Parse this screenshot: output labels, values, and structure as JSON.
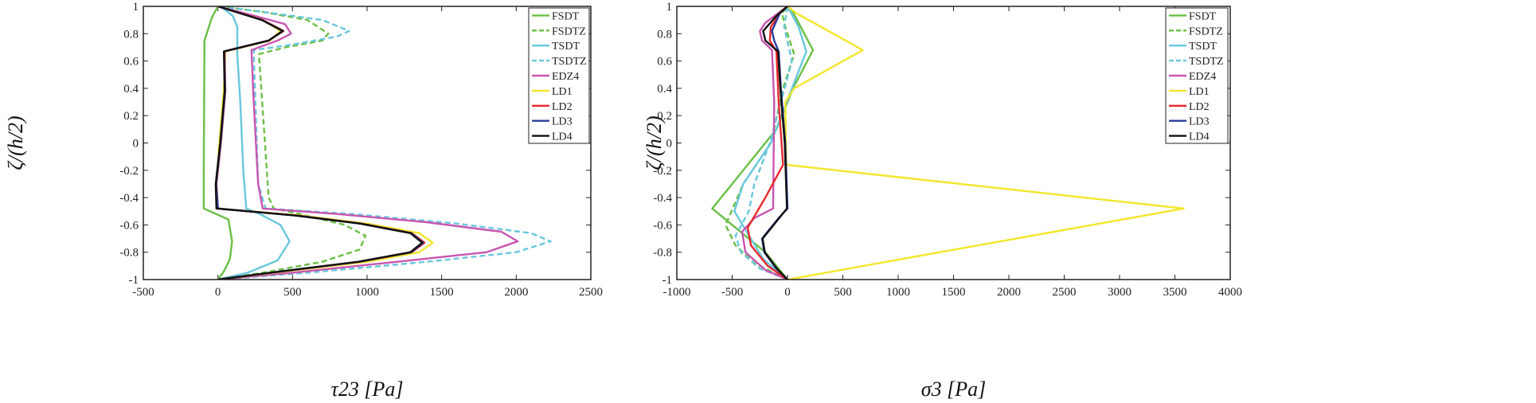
{
  "chart_data": [
    {
      "type": "line",
      "title": "",
      "xlabel": "τ23 [Pa]",
      "ylabel": "ζ/(h/2)",
      "xlim": [
        -500,
        2500
      ],
      "ylim": [
        -1,
        1
      ],
      "xticks": [
        "-500",
        "0",
        "500",
        "1000",
        "1500",
        "2000",
        "2500"
      ],
      "yticks": [
        "-1",
        "-0.8",
        "-0.6",
        "-0.4",
        "-0.2",
        "0",
        "0.2",
        "0.4",
        "0.6",
        "0.8",
        "1"
      ],
      "legend_position": "top-right",
      "series": [
        {
          "name": "FSDT",
          "color": "#6abf45",
          "dash": "solid",
          "points": [
            [
              0,
              -1
            ],
            [
              40,
              -0.94
            ],
            [
              80,
              -0.85
            ],
            [
              95,
              -0.72
            ],
            [
              70,
              -0.56
            ],
            [
              -95,
              -0.48
            ],
            [
              -95,
              -0.2
            ],
            [
              -90,
              0.75
            ],
            [
              -40,
              0.92
            ],
            [
              0,
              1
            ]
          ]
        },
        {
          "name": "FSDTZ",
          "color": "#6abf45",
          "dash": "dash",
          "points": [
            [
              0,
              -1
            ],
            [
              300,
              -0.95
            ],
            [
              700,
              -0.87
            ],
            [
              950,
              -0.78
            ],
            [
              990,
              -0.68
            ],
            [
              850,
              -0.6
            ],
            [
              550,
              -0.52
            ],
            [
              375,
              -0.48
            ],
            [
              340,
              -0.4
            ],
            [
              275,
              0.65
            ],
            [
              450,
              0.7
            ],
            [
              700,
              0.75
            ],
            [
              740,
              0.8
            ],
            [
              600,
              0.9
            ],
            [
              300,
              0.96
            ],
            [
              0,
              1
            ]
          ]
        },
        {
          "name": "TSDT",
          "color": "#68c7dc",
          "dash": "solid",
          "points": [
            [
              0,
              -1
            ],
            [
              200,
              -0.95
            ],
            [
              400,
              -0.86
            ],
            [
              480,
              -0.72
            ],
            [
              420,
              -0.6
            ],
            [
              280,
              -0.52
            ],
            [
              190,
              -0.48
            ],
            [
              170,
              -0.2
            ],
            [
              150,
              0.3
            ],
            [
              130,
              0.65
            ],
            [
              130,
              0.85
            ],
            [
              100,
              0.93
            ],
            [
              30,
              0.99
            ]
          ]
        },
        {
          "name": "TSDTZ",
          "color": "#68c7dc",
          "dash": "dash",
          "points": [
            [
              0,
              -1
            ],
            [
              600,
              -0.95
            ],
            [
              1400,
              -0.87
            ],
            [
              2000,
              -0.8
            ],
            [
              2230,
              -0.72
            ],
            [
              2100,
              -0.66
            ],
            [
              1600,
              -0.59
            ],
            [
              900,
              -0.52
            ],
            [
              320,
              -0.48
            ],
            [
              270,
              -0.3
            ],
            [
              245,
              0.5
            ],
            [
              240,
              0.68
            ],
            [
              500,
              0.72
            ],
            [
              800,
              0.78
            ],
            [
              880,
              0.82
            ],
            [
              700,
              0.9
            ],
            [
              300,
              0.96
            ],
            [
              0,
              1
            ]
          ]
        },
        {
          "name": "EDZ4",
          "color": "#c855b0",
          "dash": "solid",
          "points": [
            [
              0,
              -1
            ],
            [
              500,
              -0.95
            ],
            [
              1200,
              -0.87
            ],
            [
              1800,
              -0.8
            ],
            [
              2010,
              -0.72
            ],
            [
              1900,
              -0.65
            ],
            [
              1400,
              -0.58
            ],
            [
              800,
              -0.52
            ],
            [
              300,
              -0.48
            ],
            [
              270,
              -0.3
            ],
            [
              240,
              0.3
            ],
            [
              225,
              0.68
            ],
            [
              400,
              0.75
            ],
            [
              490,
              0.8
            ],
            [
              450,
              0.87
            ],
            [
              250,
              0.93
            ],
            [
              0,
              1
            ]
          ]
        },
        {
          "name": "LD1",
          "color": "#f4e62a",
          "dash": "solid",
          "points": [
            [
              0,
              -1
            ],
            [
              380,
              -0.95
            ],
            [
              1000,
              -0.87
            ],
            [
              1350,
              -0.8
            ],
            [
              1440,
              -0.73
            ],
            [
              1350,
              -0.66
            ],
            [
              1000,
              -0.59
            ],
            [
              550,
              -0.53
            ],
            [
              0,
              -0.48
            ],
            [
              -10,
              -0.3
            ],
            [
              10,
              0
            ],
            [
              40,
              0.4
            ],
            [
              50,
              0.67
            ],
            [
              350,
              0.75
            ],
            [
              420,
              0.82
            ],
            [
              300,
              0.9
            ],
            [
              0,
              1
            ]
          ]
        },
        {
          "name": "LD2",
          "color": "#e8282a",
          "dash": "solid",
          "points": [
            [
              0,
              -1
            ],
            [
              360,
              -0.95
            ],
            [
              950,
              -0.87
            ],
            [
              1300,
              -0.8
            ],
            [
              1385,
              -0.73
            ],
            [
              1300,
              -0.66
            ],
            [
              960,
              -0.59
            ],
            [
              520,
              -0.53
            ],
            [
              0,
              -0.48
            ],
            [
              -10,
              -0.3
            ],
            [
              20,
              0
            ],
            [
              50,
              0.38
            ],
            [
              45,
              0.67
            ],
            [
              340,
              0.75
            ],
            [
              440,
              0.82
            ],
            [
              300,
              0.9
            ],
            [
              0,
              1
            ]
          ]
        },
        {
          "name": "LD3",
          "color": "#2a3c9e",
          "dash": "solid",
          "points": [
            [
              0,
              -1
            ],
            [
              355,
              -0.95
            ],
            [
              945,
              -0.87
            ],
            [
              1295,
              -0.8
            ],
            [
              1375,
              -0.73
            ],
            [
              1295,
              -0.66
            ],
            [
              955,
              -0.59
            ],
            [
              515,
              -0.53
            ],
            [
              0,
              -0.48
            ],
            [
              -12,
              -0.3
            ],
            [
              18,
              0
            ],
            [
              48,
              0.38
            ],
            [
              42,
              0.67
            ],
            [
              340,
              0.75
            ],
            [
              435,
              0.82
            ],
            [
              295,
              0.9
            ],
            [
              0,
              1
            ]
          ]
        },
        {
          "name": "LD4",
          "color": "#111111",
          "dash": "solid",
          "points": [
            [
              0,
              -1
            ],
            [
              350,
              -0.95
            ],
            [
              940,
              -0.87
            ],
            [
              1290,
              -0.8
            ],
            [
              1370,
              -0.73
            ],
            [
              1290,
              -0.66
            ],
            [
              950,
              -0.59
            ],
            [
              510,
              -0.53
            ],
            [
              -10,
              -0.48
            ],
            [
              -15,
              -0.3
            ],
            [
              15,
              0
            ],
            [
              45,
              0.38
            ],
            [
              40,
              0.67
            ],
            [
              340,
              0.75
            ],
            [
              435,
              0.82
            ],
            [
              295,
              0.9
            ],
            [
              0,
              1
            ]
          ]
        }
      ]
    },
    {
      "type": "line",
      "title": "",
      "xlabel": "σ3 [Pa]",
      "ylabel": "ζ/(h/2)",
      "xlim": [
        -1000,
        4000
      ],
      "ylim": [
        -1,
        1
      ],
      "xticks": [
        "-1000",
        "-500",
        "0",
        "500",
        "1000",
        "1500",
        "2000",
        "2500",
        "3000",
        "3500",
        "4000"
      ],
      "yticks": [
        "-1",
        "-0.8",
        "-0.6",
        "-0.4",
        "-0.2",
        "0",
        "0.2",
        "0.4",
        "0.6",
        "0.8",
        "1"
      ],
      "legend_position": "top-right",
      "series": [
        {
          "name": "FSDT",
          "color": "#6abf45",
          "dash": "solid",
          "points": [
            [
              0,
              -1
            ],
            [
              -200,
              -0.8
            ],
            [
              -680,
              -0.48
            ],
            [
              -400,
              -0.2
            ],
            [
              -100,
              0.1
            ],
            [
              50,
              0.4
            ],
            [
              230,
              0.68
            ],
            [
              40,
              0.97
            ],
            [
              0,
              1
            ]
          ]
        },
        {
          "name": "FSDTZ",
          "color": "#6abf45",
          "dash": "dash",
          "points": [
            [
              0,
              -1
            ],
            [
              -300,
              -0.88
            ],
            [
              -470,
              -0.75
            ],
            [
              -560,
              -0.6
            ],
            [
              -400,
              -0.3
            ],
            [
              -150,
              0
            ],
            [
              -40,
              0.4
            ],
            [
              60,
              0.65
            ],
            [
              -20,
              0.85
            ],
            [
              -50,
              0.95
            ],
            [
              0,
              1
            ]
          ]
        },
        {
          "name": "TSDT",
          "color": "#68c7dc",
          "dash": "solid",
          "points": [
            [
              0,
              -1
            ],
            [
              -220,
              -0.85
            ],
            [
              -480,
              -0.5
            ],
            [
              -400,
              -0.3
            ],
            [
              -150,
              0
            ],
            [
              40,
              0.4
            ],
            [
              170,
              0.67
            ],
            [
              100,
              0.85
            ],
            [
              0,
              1
            ]
          ]
        },
        {
          "name": "TSDTZ",
          "color": "#68c7dc",
          "dash": "dash",
          "points": [
            [
              0,
              -1
            ],
            [
              -250,
              -0.92
            ],
            [
              -420,
              -0.8
            ],
            [
              -470,
              -0.68
            ],
            [
              -350,
              -0.5
            ],
            [
              -300,
              -0.3
            ],
            [
              -160,
              0
            ],
            [
              -60,
              0.3
            ],
            [
              40,
              0.6
            ],
            [
              -30,
              0.85
            ],
            [
              0,
              1
            ]
          ]
        },
        {
          "name": "EDZ4",
          "color": "#c855b0",
          "dash": "solid",
          "points": [
            [
              0,
              -1
            ],
            [
              -200,
              -0.93
            ],
            [
              -380,
              -0.8
            ],
            [
              -410,
              -0.65
            ],
            [
              -300,
              -0.55
            ],
            [
              -130,
              -0.48
            ],
            [
              -120,
              0.3
            ],
            [
              -140,
              0.68
            ],
            [
              -230,
              0.75
            ],
            [
              -250,
              0.82
            ],
            [
              -200,
              0.88
            ],
            [
              -50,
              0.97
            ],
            [
              0,
              1
            ]
          ]
        },
        {
          "name": "LD1",
          "color": "#f4e62a",
          "dash": "solid",
          "points": [
            [
              0,
              -1
            ],
            [
              3580,
              -0.48
            ],
            [
              -10,
              -0.16
            ],
            [
              -20,
              0.3
            ],
            [
              60,
              0.4
            ],
            [
              680,
              0.68
            ],
            [
              80,
              0.95
            ],
            [
              0,
              1
            ]
          ]
        },
        {
          "name": "LD2",
          "color": "#e8282a",
          "dash": "solid",
          "points": [
            [
              0,
              -1
            ],
            [
              -180,
              -0.9
            ],
            [
              -330,
              -0.75
            ],
            [
              -360,
              -0.62
            ],
            [
              -200,
              -0.4
            ],
            [
              -40,
              -0.16
            ],
            [
              -80,
              0.3
            ],
            [
              -100,
              0.67
            ],
            [
              -160,
              0.75
            ],
            [
              -150,
              0.85
            ],
            [
              -50,
              0.97
            ],
            [
              0,
              1
            ]
          ]
        },
        {
          "name": "LD3",
          "color": "#2a3c9e",
          "dash": "solid",
          "points": [
            [
              0,
              -1
            ],
            [
              -100,
              -0.92
            ],
            [
              -210,
              -0.8
            ],
            [
              -230,
              -0.7
            ],
            [
              -80,
              -0.55
            ],
            [
              0,
              -0.48
            ],
            [
              -20,
              0
            ],
            [
              -60,
              0.4
            ],
            [
              -80,
              0.67
            ],
            [
              -120,
              0.75
            ],
            [
              -140,
              0.82
            ],
            [
              -70,
              0.95
            ],
            [
              0,
              1
            ]
          ]
        },
        {
          "name": "LD4",
          "color": "#111111",
          "dash": "solid",
          "points": [
            [
              0,
              -1
            ],
            [
              -95,
              -0.92
            ],
            [
              -205,
              -0.8
            ],
            [
              -225,
              -0.7
            ],
            [
              -75,
              -0.55
            ],
            [
              -5,
              -0.48
            ],
            [
              -25,
              0
            ],
            [
              -65,
              0.4
            ],
            [
              -85,
              0.67
            ],
            [
              -200,
              0.75
            ],
            [
              -220,
              0.82
            ],
            [
              -100,
              0.93
            ],
            [
              0,
              1
            ]
          ]
        }
      ]
    }
  ]
}
